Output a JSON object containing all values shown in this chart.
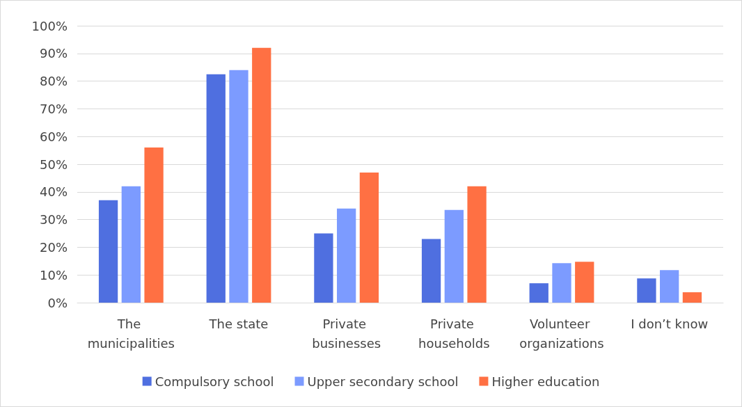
{
  "chart_data": {
    "type": "bar",
    "categories": [
      "The municipalities",
      "The state",
      "Private businesses",
      "Private households",
      "Volunteer organizations",
      "I don’t know"
    ],
    "series": [
      {
        "name": "Compulsory school",
        "color": "#4f6fe0",
        "values": [
          37,
          82.5,
          25,
          23,
          7,
          8.75
        ]
      },
      {
        "name": "Upper secondary school",
        "color": "#7c9bff",
        "values": [
          42,
          84,
          34,
          33.5,
          14.25,
          11.75
        ]
      },
      {
        "name": "Higher education",
        "color": "#ff7043",
        "values": [
          56,
          92,
          47,
          42,
          14.75,
          3.75
        ]
      }
    ],
    "ylim": [
      0,
      100
    ],
    "yticks": [
      {
        "value": 0,
        "label": "0%"
      },
      {
        "value": 10,
        "label": "10%"
      },
      {
        "value": 20,
        "label": "20%"
      },
      {
        "value": 30,
        "label": "30%"
      },
      {
        "value": 40,
        "label": "40%"
      },
      {
        "value": 50,
        "label": "50%"
      },
      {
        "value": 60,
        "label": "60%"
      },
      {
        "value": 70,
        "label": "70%"
      },
      {
        "value": 80,
        "label": "80%"
      },
      {
        "value": 90,
        "label": "90%"
      },
      {
        "value": 100,
        "label": "100%"
      }
    ],
    "grid": "y",
    "legend": "bottom"
  }
}
